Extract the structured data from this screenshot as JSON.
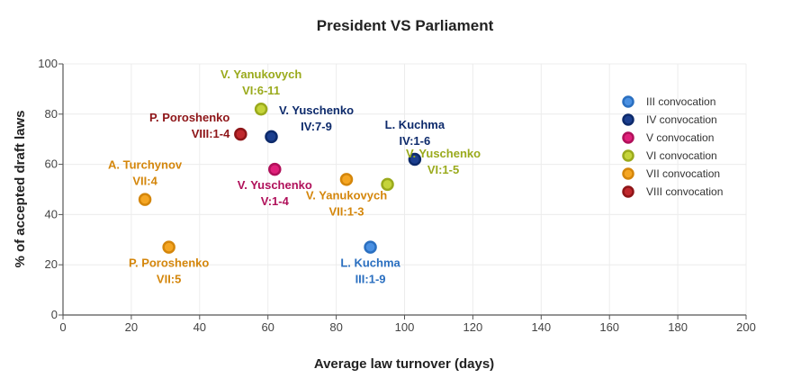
{
  "chart_data": {
    "type": "scatter",
    "title": "President VS Parliament",
    "xlabel": "Average law turnover (days)",
    "ylabel": "% of accepted draft laws",
    "xlim": [
      0,
      200
    ],
    "ylim": [
      0,
      100
    ],
    "xticks": [
      0,
      20,
      40,
      60,
      80,
      100,
      120,
      140,
      160,
      180,
      200
    ],
    "yticks": [
      0,
      20,
      40,
      60,
      80,
      100
    ],
    "grid": true,
    "legend_position": "right",
    "series": [
      {
        "name": "III convocation",
        "color": "#4a90e2",
        "stroke": "#2a6fc0",
        "points": [
          {
            "x": 90,
            "y": 27,
            "label": [
              "L. Kuchma",
              "III:1-9"
            ],
            "label_pos": "below"
          }
        ]
      },
      {
        "name": "IV convocation",
        "color": "#1c3f8f",
        "stroke": "#0d2a6b",
        "points": [
          {
            "x": 61,
            "y": 71,
            "label": [
              "V. Yuschenko",
              "IV:7-9"
            ],
            "label_pos": "right-above"
          },
          {
            "x": 103,
            "y": 62,
            "label": [
              "L. Kuchma",
              "IV:1-6"
            ],
            "label_pos": "above"
          }
        ]
      },
      {
        "name": "V convocation",
        "color": "#e0207a",
        "stroke": "#b0105a",
        "points": [
          {
            "x": 62,
            "y": 58,
            "label": [
              "V. Yuschenko",
              "V:1-4"
            ],
            "label_pos": "below"
          }
        ]
      },
      {
        "name": "VI convocation",
        "color": "#c5d43a",
        "stroke": "#9aaa1c",
        "points": [
          {
            "x": 58,
            "y": 82,
            "label": [
              "V. Yanukovych",
              "VI:6-11"
            ],
            "label_pos": "above"
          },
          {
            "x": 95,
            "y": 52,
            "label": [
              "V. Yuschenko",
              "VI:1-5"
            ],
            "label_pos": "right"
          }
        ]
      },
      {
        "name": "VII convocation",
        "color": "#f5a623",
        "stroke": "#d4860b",
        "points": [
          {
            "x": 24,
            "y": 46,
            "label": [
              "A. Turchynov",
              "VII:4"
            ],
            "label_pos": "above"
          },
          {
            "x": 31,
            "y": 27,
            "label": [
              "P. Poroshenko",
              "VII:5"
            ],
            "label_pos": "below"
          },
          {
            "x": 83,
            "y": 54,
            "label": [
              "V. Yanukovych",
              "VII:1-3"
            ],
            "label_pos": "below"
          }
        ]
      },
      {
        "name": "VIII convocation",
        "color": "#c0282d",
        "stroke": "#8e1518",
        "points": [
          {
            "x": 52,
            "y": 72,
            "label": [
              "P. Poroshenko",
              "VIII:1-4"
            ],
            "label_pos": "left"
          }
        ]
      }
    ]
  }
}
